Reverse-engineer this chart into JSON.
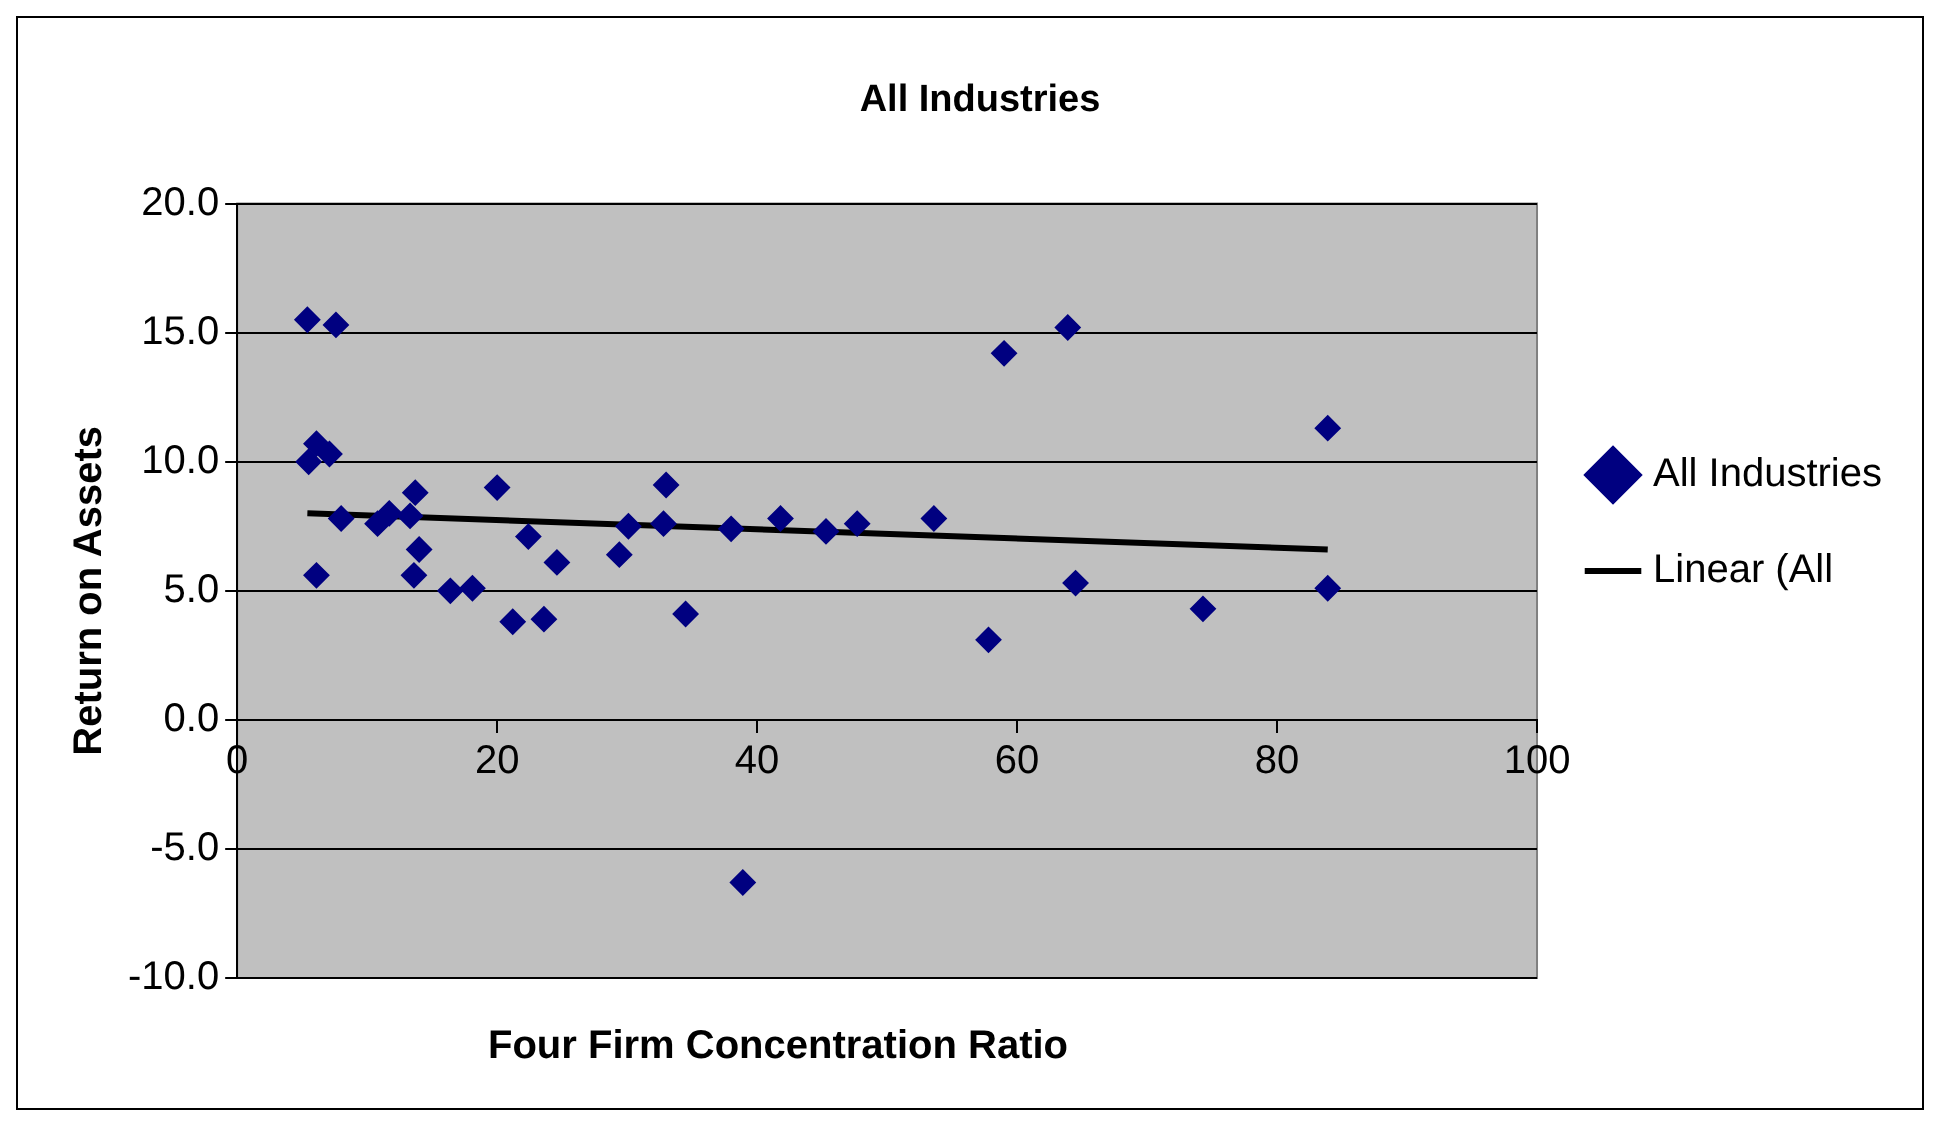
{
  "chart_data": {
    "type": "scatter",
    "title": "All Industries",
    "xlabel": "Four Firm Concentration Ratio",
    "ylabel": "Return on Assets",
    "xlim": [
      0,
      100
    ],
    "xticks": [
      0,
      20,
      40,
      60,
      80,
      100
    ],
    "ylim": [
      -10,
      20
    ],
    "yticks": [
      {
        "value": -10,
        "label": "-10.0"
      },
      {
        "value": -5,
        "label": "-5.0"
      },
      {
        "value": 0,
        "label": "0.0"
      },
      {
        "value": 5,
        "label": "5.0"
      },
      {
        "value": 10,
        "label": "10.0"
      },
      {
        "value": 15,
        "label": "15.0"
      },
      {
        "value": 20,
        "label": "20.0"
      }
    ],
    "grid": "y",
    "legend": "right",
    "marker": "diamond",
    "series": [
      {
        "name": "All Industries",
        "type": "scatter",
        "color": "#000080",
        "x": [
          5.4,
          7.6,
          6.1,
          5.5,
          7.1,
          6.1,
          8.0,
          10.8,
          11.7,
          13.3,
          13.7,
          14.0,
          13.6,
          16.4,
          18.1,
          20.0,
          21.2,
          22.4,
          23.6,
          24.6,
          29.4,
          30.1,
          32.8,
          33.0,
          34.5,
          38.0,
          38.9,
          41.8,
          45.3,
          47.7,
          53.6,
          57.8,
          59.0,
          63.9,
          64.5,
          74.3,
          83.9,
          83.9
        ],
        "values": [
          15.5,
          15.3,
          10.7,
          10.0,
          10.3,
          5.6,
          7.8,
          7.6,
          8.0,
          7.9,
          8.8,
          6.6,
          5.6,
          5.0,
          5.1,
          9.0,
          3.8,
          7.1,
          3.9,
          6.1,
          6.4,
          7.5,
          7.6,
          9.1,
          4.1,
          7.4,
          -6.3,
          7.8,
          7.3,
          7.6,
          7.8,
          3.1,
          14.2,
          15.2,
          5.3,
          4.3,
          11.3,
          5.1
        ]
      },
      {
        "name": "Linear (All",
        "type": "line",
        "color": "#000000",
        "marker": "none",
        "line_style": "solid",
        "x": [
          5.4,
          83.9
        ],
        "values": [
          8.0,
          6.6
        ]
      }
    ]
  }
}
